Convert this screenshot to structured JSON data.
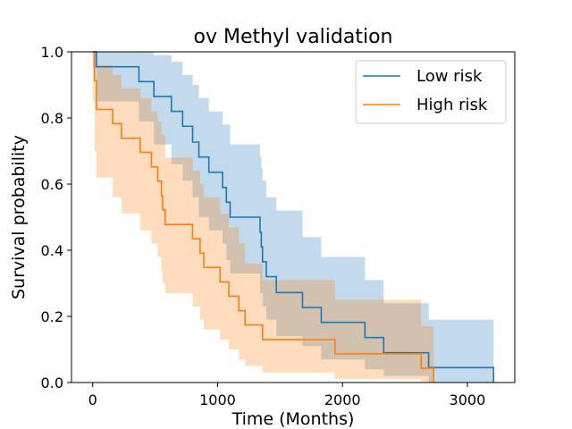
{
  "chart_data": {
    "type": "line",
    "subtype": "kaplan-meier survival curve with confidence bands",
    "title": "ov Methyl validation",
    "xlabel": "Time (Months)",
    "ylabel": "Survival probability",
    "xlim": [
      -170,
      3380
    ],
    "ylim": [
      0,
      1
    ],
    "xticks": [
      0,
      1000,
      2000,
      3000
    ],
    "yticks": [
      0.0,
      0.2,
      0.4,
      0.6,
      0.8,
      1.0
    ],
    "xtick_labels": [
      "0",
      "1000",
      "2000",
      "3000"
    ],
    "ytick_labels": [
      "0.0",
      "0.2",
      "0.4",
      "0.6",
      "0.8",
      "1.0"
    ],
    "grid": false,
    "legend_position": "top-right",
    "series": [
      {
        "name": "Low risk",
        "color": "#1f77b4",
        "band_color": "#1f77b4",
        "band_opacity": 0.27,
        "steps": [
          [
            0,
            1.0
          ],
          [
            30,
            0.955
          ],
          [
            370,
            0.91
          ],
          [
            490,
            0.865
          ],
          [
            630,
            0.82
          ],
          [
            720,
            0.775
          ],
          [
            800,
            0.727
          ],
          [
            850,
            0.682
          ],
          [
            930,
            0.636
          ],
          [
            1040,
            0.59
          ],
          [
            1070,
            0.545
          ],
          [
            1100,
            0.5
          ],
          [
            1340,
            0.455
          ],
          [
            1350,
            0.41
          ],
          [
            1360,
            0.365
          ],
          [
            1390,
            0.32
          ],
          [
            1470,
            0.272
          ],
          [
            1680,
            0.227
          ],
          [
            1830,
            0.182
          ],
          [
            2180,
            0.136
          ],
          [
            2330,
            0.09
          ],
          [
            2690,
            0.045
          ],
          [
            3210,
            0.0
          ]
        ],
        "ci_upper": [
          [
            0,
            1.0
          ],
          [
            370,
            1.0
          ],
          [
            490,
            0.99
          ],
          [
            630,
            0.97
          ],
          [
            720,
            0.93
          ],
          [
            800,
            0.9
          ],
          [
            850,
            0.86
          ],
          [
            930,
            0.82
          ],
          [
            1040,
            0.78
          ],
          [
            1100,
            0.72
          ],
          [
            1340,
            0.68
          ],
          [
            1350,
            0.65
          ],
          [
            1360,
            0.61
          ],
          [
            1390,
            0.56
          ],
          [
            1470,
            0.52
          ],
          [
            1680,
            0.44
          ],
          [
            1830,
            0.38
          ],
          [
            2180,
            0.31
          ],
          [
            2330,
            0.24
          ],
          [
            2690,
            0.19
          ],
          [
            3210,
            0.19
          ]
        ],
        "ci_lower": [
          [
            0,
            0.95
          ],
          [
            30,
            0.85
          ],
          [
            370,
            0.79
          ],
          [
            490,
            0.72
          ],
          [
            630,
            0.66
          ],
          [
            720,
            0.61
          ],
          [
            800,
            0.56
          ],
          [
            850,
            0.5
          ],
          [
            930,
            0.46
          ],
          [
            1040,
            0.42
          ],
          [
            1070,
            0.37
          ],
          [
            1100,
            0.33
          ],
          [
            1340,
            0.27
          ],
          [
            1360,
            0.23
          ],
          [
            1390,
            0.19
          ],
          [
            1470,
            0.14
          ],
          [
            1680,
            0.11
          ],
          [
            1830,
            0.07
          ],
          [
            2180,
            0.04
          ],
          [
            2330,
            0.02
          ],
          [
            2690,
            0.0
          ],
          [
            3210,
            0.0
          ]
        ]
      },
      {
        "name": "High risk",
        "color": "#ff7f0e",
        "band_color": "#ff7f0e",
        "band_opacity": 0.27,
        "steps": [
          [
            0,
            1.0
          ],
          [
            15,
            0.913
          ],
          [
            30,
            0.826
          ],
          [
            160,
            0.783
          ],
          [
            230,
            0.739
          ],
          [
            380,
            0.696
          ],
          [
            470,
            0.652
          ],
          [
            520,
            0.609
          ],
          [
            550,
            0.565
          ],
          [
            560,
            0.522
          ],
          [
            580,
            0.478
          ],
          [
            800,
            0.435
          ],
          [
            860,
            0.391
          ],
          [
            890,
            0.348
          ],
          [
            1020,
            0.304
          ],
          [
            1090,
            0.261
          ],
          [
            1170,
            0.217
          ],
          [
            1220,
            0.174
          ],
          [
            1360,
            0.13
          ],
          [
            1940,
            0.087
          ],
          [
            2630,
            0.043
          ],
          [
            2730,
            0.0
          ]
        ],
        "ci_upper": [
          [
            0,
            1.0
          ],
          [
            30,
            0.96
          ],
          [
            160,
            0.93
          ],
          [
            230,
            0.89
          ],
          [
            380,
            0.86
          ],
          [
            470,
            0.82
          ],
          [
            520,
            0.79
          ],
          [
            550,
            0.75
          ],
          [
            580,
            0.68
          ],
          [
            800,
            0.64
          ],
          [
            860,
            0.6
          ],
          [
            890,
            0.56
          ],
          [
            1020,
            0.51
          ],
          [
            1090,
            0.47
          ],
          [
            1170,
            0.42
          ],
          [
            1220,
            0.36
          ],
          [
            1360,
            0.31
          ],
          [
            1940,
            0.25
          ],
          [
            2630,
            0.17
          ],
          [
            2730,
            0.17
          ]
        ],
        "ci_lower": [
          [
            0,
            0.85
          ],
          [
            15,
            0.7
          ],
          [
            30,
            0.62
          ],
          [
            160,
            0.56
          ],
          [
            230,
            0.51
          ],
          [
            380,
            0.46
          ],
          [
            470,
            0.42
          ],
          [
            520,
            0.38
          ],
          [
            550,
            0.34
          ],
          [
            560,
            0.3
          ],
          [
            580,
            0.27
          ],
          [
            800,
            0.23
          ],
          [
            860,
            0.19
          ],
          [
            890,
            0.16
          ],
          [
            1020,
            0.13
          ],
          [
            1090,
            0.1
          ],
          [
            1170,
            0.07
          ],
          [
            1220,
            0.05
          ],
          [
            1360,
            0.03
          ],
          [
            1940,
            0.01
          ],
          [
            2630,
            0.0
          ],
          [
            2730,
            0.0
          ]
        ]
      }
    ]
  }
}
